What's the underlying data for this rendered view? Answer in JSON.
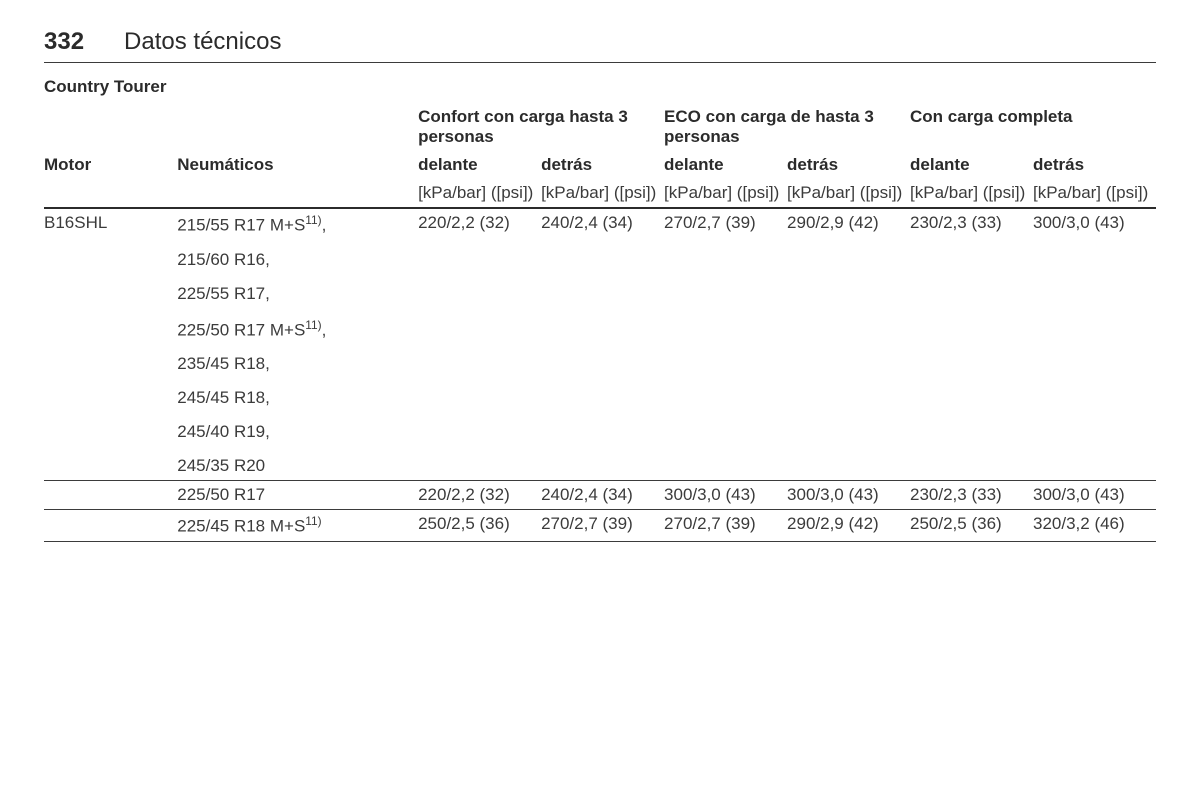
{
  "page_number": "332",
  "section_title": "Datos técnicos",
  "table_title": "Country Tourer",
  "group_headers": {
    "comfort": "Confort con carga hasta 3 personas",
    "eco": "ECO con carga de hasta 3 personas",
    "full": "Con carga completa"
  },
  "col_labels": {
    "motor": "Motor",
    "tyres": "Neumáticos",
    "front": "delante",
    "rear": "detrás"
  },
  "unit_label": "[kPa/bar] ([psi])",
  "motor": "B16SHL",
  "footnote_ref": "11)",
  "tyres_block1": [
    "215/55 R17 M+S",
    "215/60 R16,",
    "225/55 R17,",
    "225/50 R17 M+S",
    "235/45 R18,",
    "245/45 R18,",
    "245/40 R19,",
    "245/35 R20"
  ],
  "tyre_row2": "225/50 R17",
  "tyre_row3": "225/45 R18 M+S",
  "rows": {
    "r1": {
      "comfort_front": "220/2,2 (32)",
      "comfort_rear": "240/2,4 (34)",
      "eco_front": "270/2,7 (39)",
      "eco_rear": "290/2,9 (42)",
      "full_front": "230/2,3 (33)",
      "full_rear": "300/3,0 (43)"
    },
    "r2": {
      "comfort_front": "220/2,2 (32)",
      "comfort_rear": "240/2,4 (34)",
      "eco_front": "300/3,0 (43)",
      "eco_rear": "300/3,0 (43)",
      "full_front": "230/2,3 (33)",
      "full_rear": "300/3,0 (43)"
    },
    "r3": {
      "comfort_front": "250/2,5 (36)",
      "comfort_rear": "270/2,7 (39)",
      "eco_front": "270/2,7 (39)",
      "eco_rear": "290/2,9 (42)",
      "full_front": "250/2,5 (36)",
      "full_rear": "320/3,2 (46)"
    }
  }
}
